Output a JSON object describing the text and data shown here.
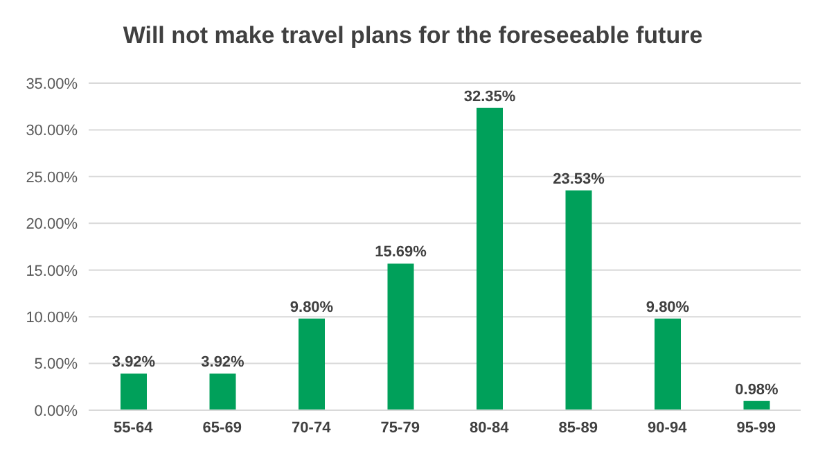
{
  "chart_data": {
    "type": "bar",
    "title": "Will not make travel plans for the foreseeable future",
    "categories": [
      "55-64",
      "65-69",
      "70-74",
      "75-79",
      "80-84",
      "85-89",
      "90-94",
      "95-99"
    ],
    "values": [
      3.92,
      3.92,
      9.8,
      15.69,
      32.35,
      23.53,
      9.8,
      0.98
    ],
    "value_labels": [
      "3.92%",
      "3.92%",
      "9.80%",
      "15.69%",
      "32.35%",
      "23.53%",
      "9.80%",
      "0.98%"
    ],
    "color": "#00a05a",
    "ylim": [
      0,
      35
    ],
    "yticks": [
      {
        "value": 0,
        "label": "0.00%"
      },
      {
        "value": 5,
        "label": "5.00%"
      },
      {
        "value": 10,
        "label": "10.00%"
      },
      {
        "value": 15,
        "label": "15.00%"
      },
      {
        "value": 20,
        "label": "20.00%"
      },
      {
        "value": 25,
        "label": "25.00%"
      },
      {
        "value": 30,
        "label": "30.00%"
      },
      {
        "value": 35,
        "label": "35.00%"
      }
    ],
    "grid": "y",
    "legend": false
  }
}
